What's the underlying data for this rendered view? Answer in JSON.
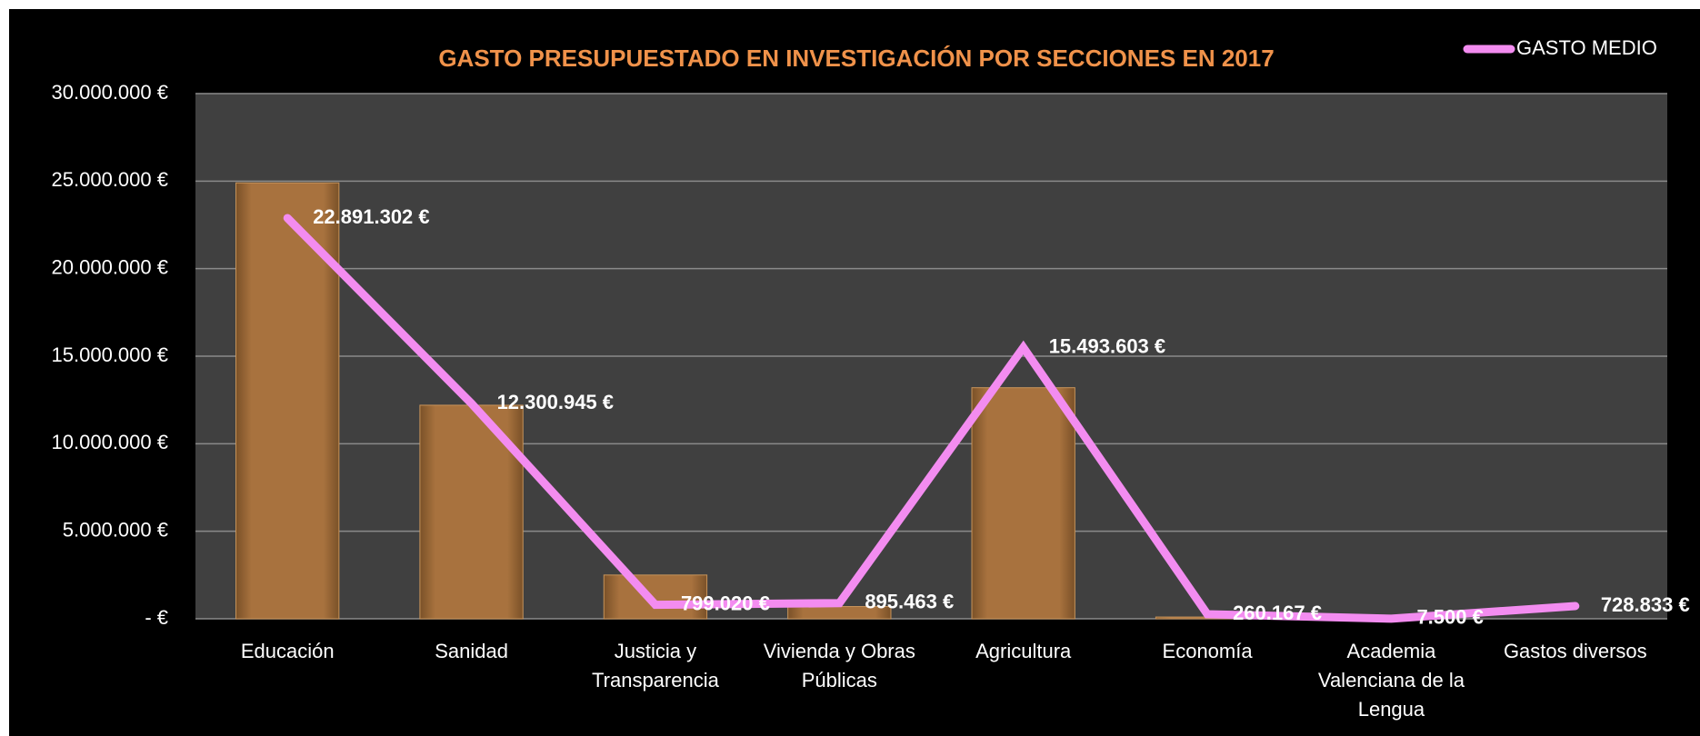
{
  "chart_data": {
    "type": "bar",
    "title": "GASTO PRESUPUESTADO EN INVESTIGACIÓN POR SECCIONES EN 2017",
    "categories": [
      "Educación",
      "Sanidad",
      "Justicia y Transparencia",
      "Vivienda y Obras Públicas",
      "Agricultura",
      "Economía",
      "Academia Valenciana de la Lengua",
      "Gastos diversos"
    ],
    "series": [
      {
        "type": "bar",
        "color": "#a8723e",
        "values": [
          24900000,
          12200000,
          2500000,
          700000,
          13200000,
          100000,
          20000,
          0
        ]
      },
      {
        "type": "line",
        "name": "GASTO MEDIO",
        "color": "#f38cf0",
        "values": [
          22891302,
          12300945,
          799020,
          895463,
          15493603,
          260167,
          7500,
          728833
        ],
        "value_labels": [
          "22.891.302 €",
          "12.300.945 €",
          "799.020 €",
          "895.463 €",
          "15.493.603 €",
          "260.167 €",
          "7.500 €",
          "728.833 €"
        ]
      }
    ],
    "ylim": [
      0,
      30000000
    ],
    "yticks": [
      {
        "value": 0,
        "label": "-  €"
      },
      {
        "value": 5000000,
        "label": "5.000.000 €"
      },
      {
        "value": 10000000,
        "label": "10.000.000 €"
      },
      {
        "value": 15000000,
        "label": "15.000.000 €"
      },
      {
        "value": 20000000,
        "label": "20.000.000 €"
      },
      {
        "value": 25000000,
        "label": "25.000.000 €"
      },
      {
        "value": 30000000,
        "label": "30.000.000 €"
      }
    ],
    "grid": true,
    "legend": "top-right"
  }
}
